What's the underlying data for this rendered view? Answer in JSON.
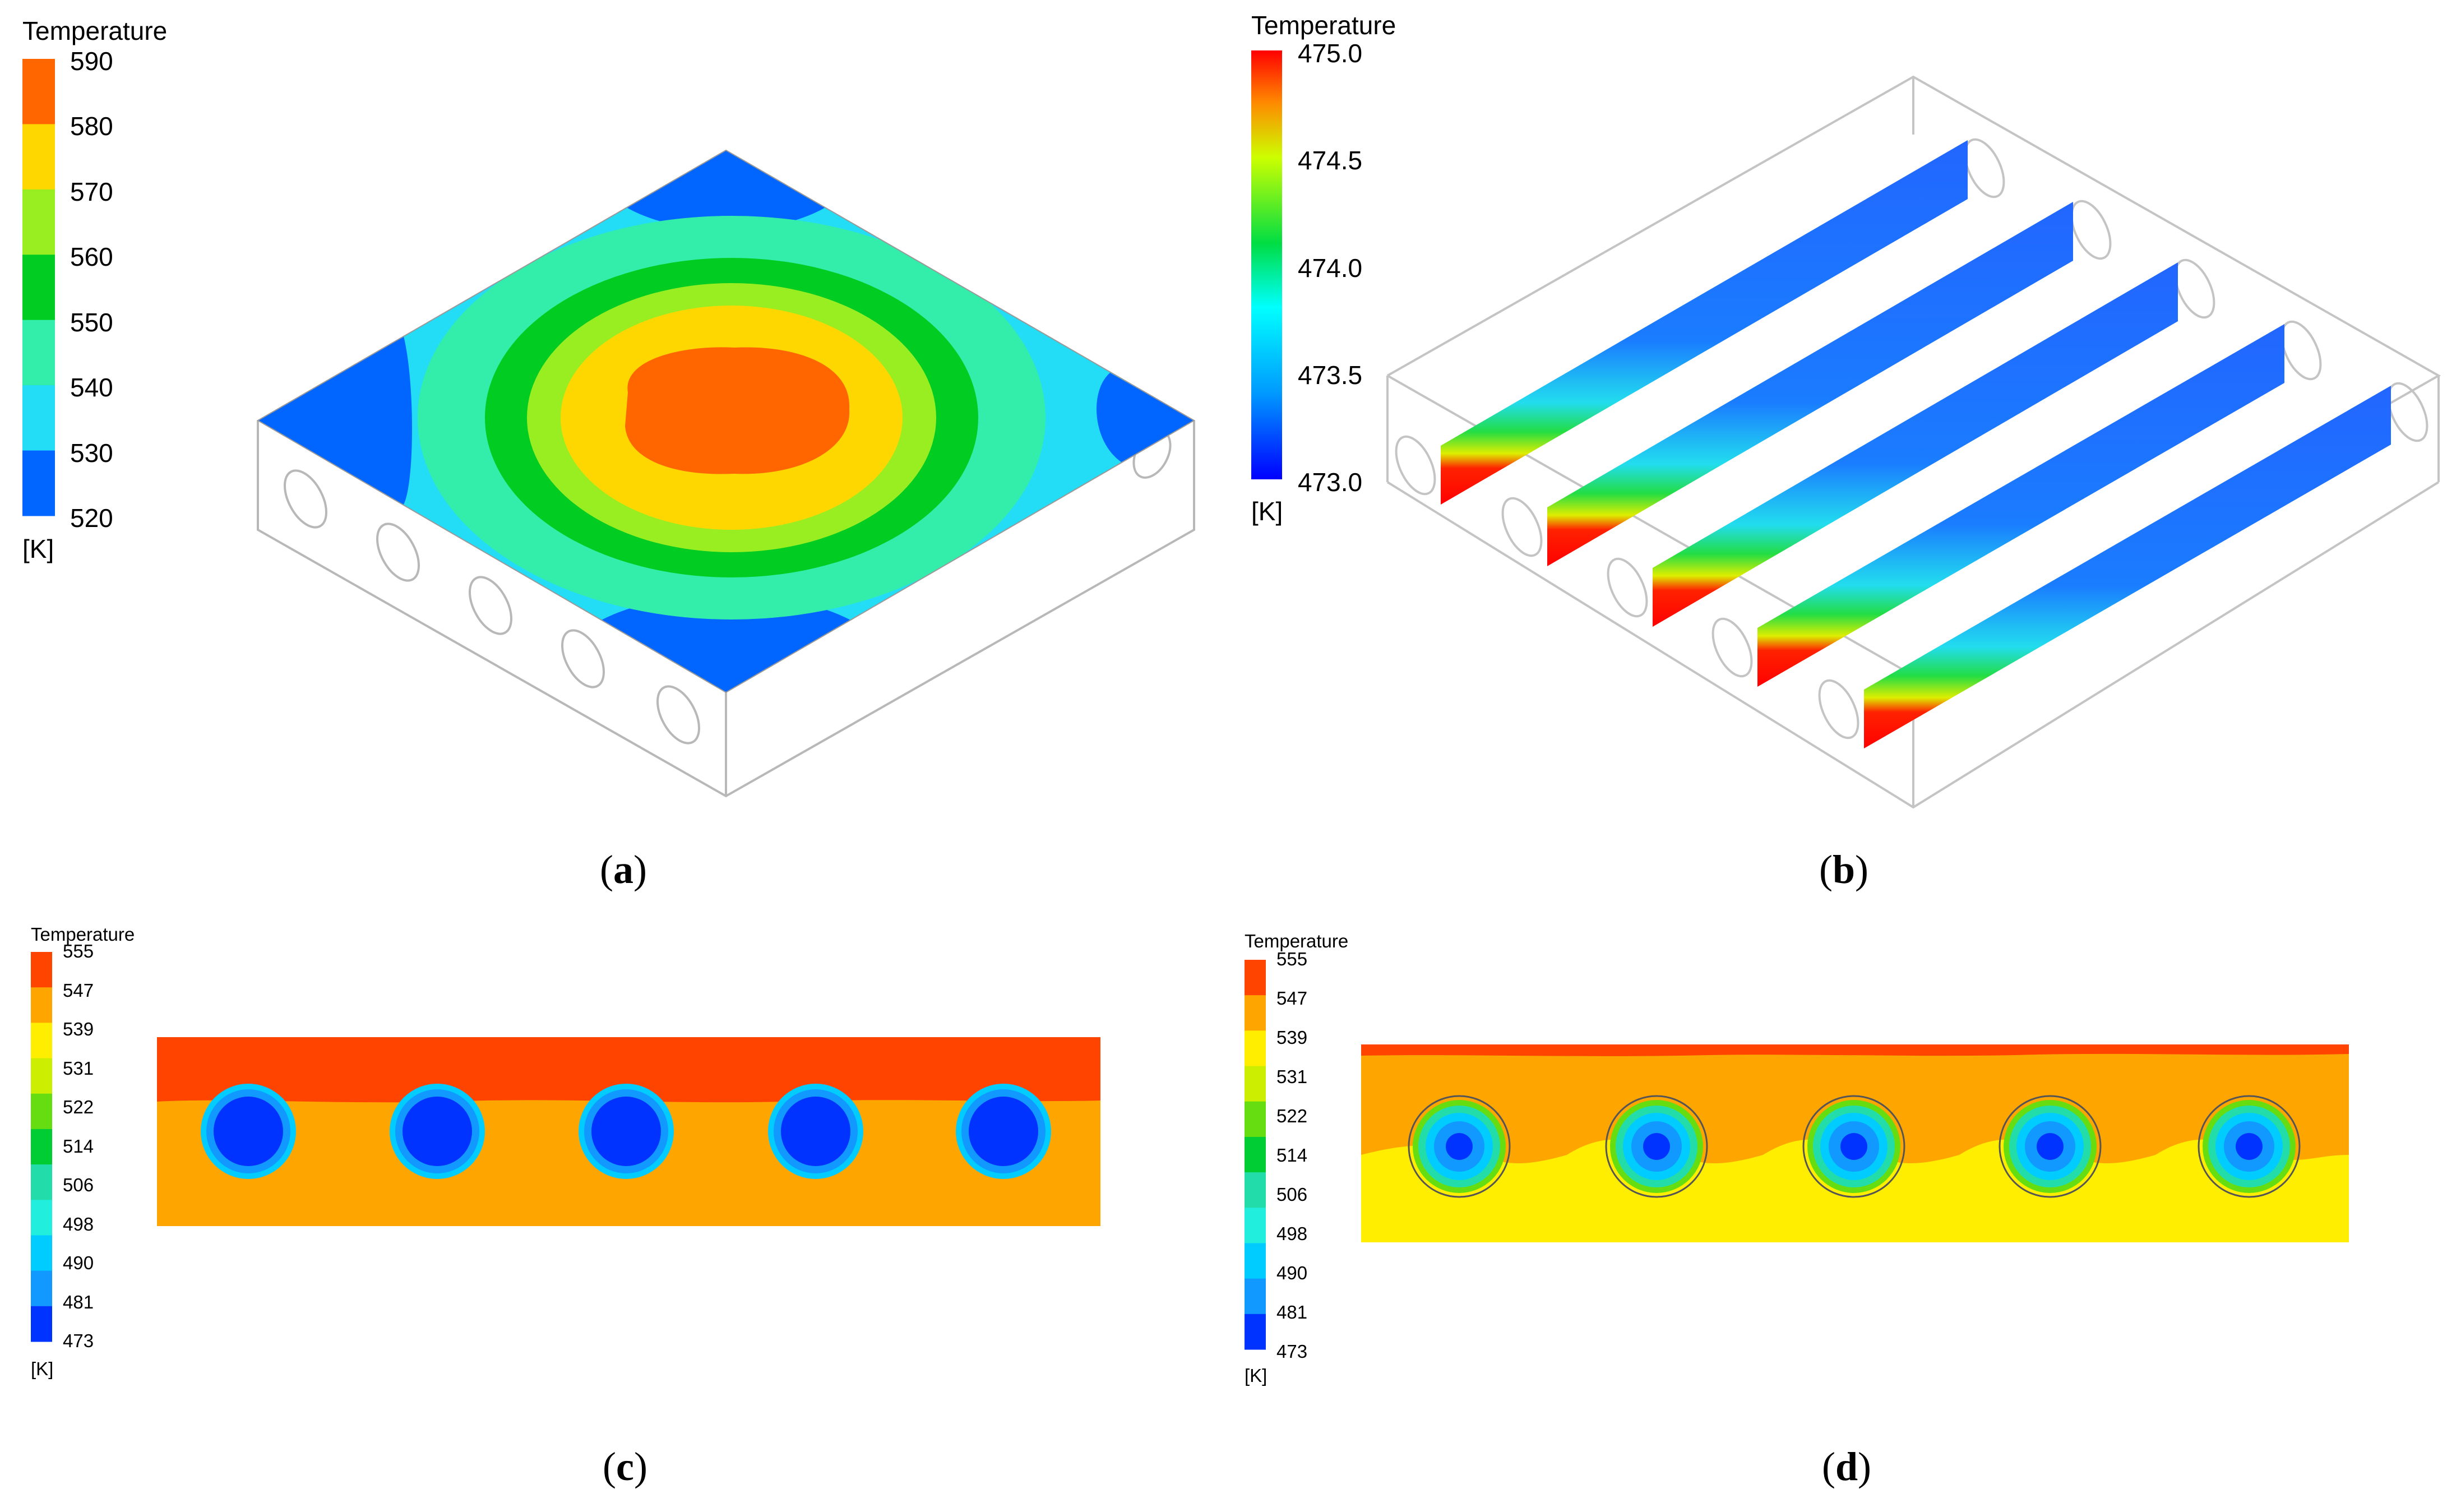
{
  "panels": [
    {
      "caption": "a",
      "legend": {
        "title": "Temperature",
        "unit": "[K]",
        "ticks": [
          "590",
          "580",
          "570",
          "560",
          "550",
          "540",
          "530",
          "520"
        ],
        "colors": [
          "#ff6600",
          "#ffd700",
          "#99ee22",
          "#00cc22",
          "#33eeaa",
          "#22ddf5",
          "#0066ff"
        ]
      }
    },
    {
      "caption": "b",
      "legend": {
        "title": "Temperature",
        "unit": "[K]",
        "ticks": [
          "475.0",
          "474.5",
          "474.0",
          "473.5",
          "473.0"
        ]
      }
    },
    {
      "caption": "c",
      "legend": {
        "title": "Temperature",
        "unit": "[K]",
        "ticks": [
          "555",
          "547",
          "539",
          "531",
          "522",
          "514",
          "506",
          "498",
          "490",
          "481",
          "473"
        ],
        "colors": [
          "#ff4400",
          "#ffa500",
          "#ffee00",
          "#ccee00",
          "#66dd11",
          "#00cc33",
          "#22ddaa",
          "#22eedd",
          "#00ccff",
          "#1199ff",
          "#0033ff"
        ]
      }
    },
    {
      "caption": "d",
      "legend": {
        "title": "Temperature",
        "unit": "[K]",
        "ticks": [
          "555",
          "547",
          "539",
          "531",
          "522",
          "514",
          "506",
          "498",
          "490",
          "481",
          "473"
        ],
        "colors": [
          "#ff4400",
          "#ffa500",
          "#ffee00",
          "#ccee00",
          "#66dd11",
          "#00cc33",
          "#22ddaa",
          "#22eedd",
          "#00ccff",
          "#1199ff",
          "#0033ff"
        ]
      }
    }
  ]
}
